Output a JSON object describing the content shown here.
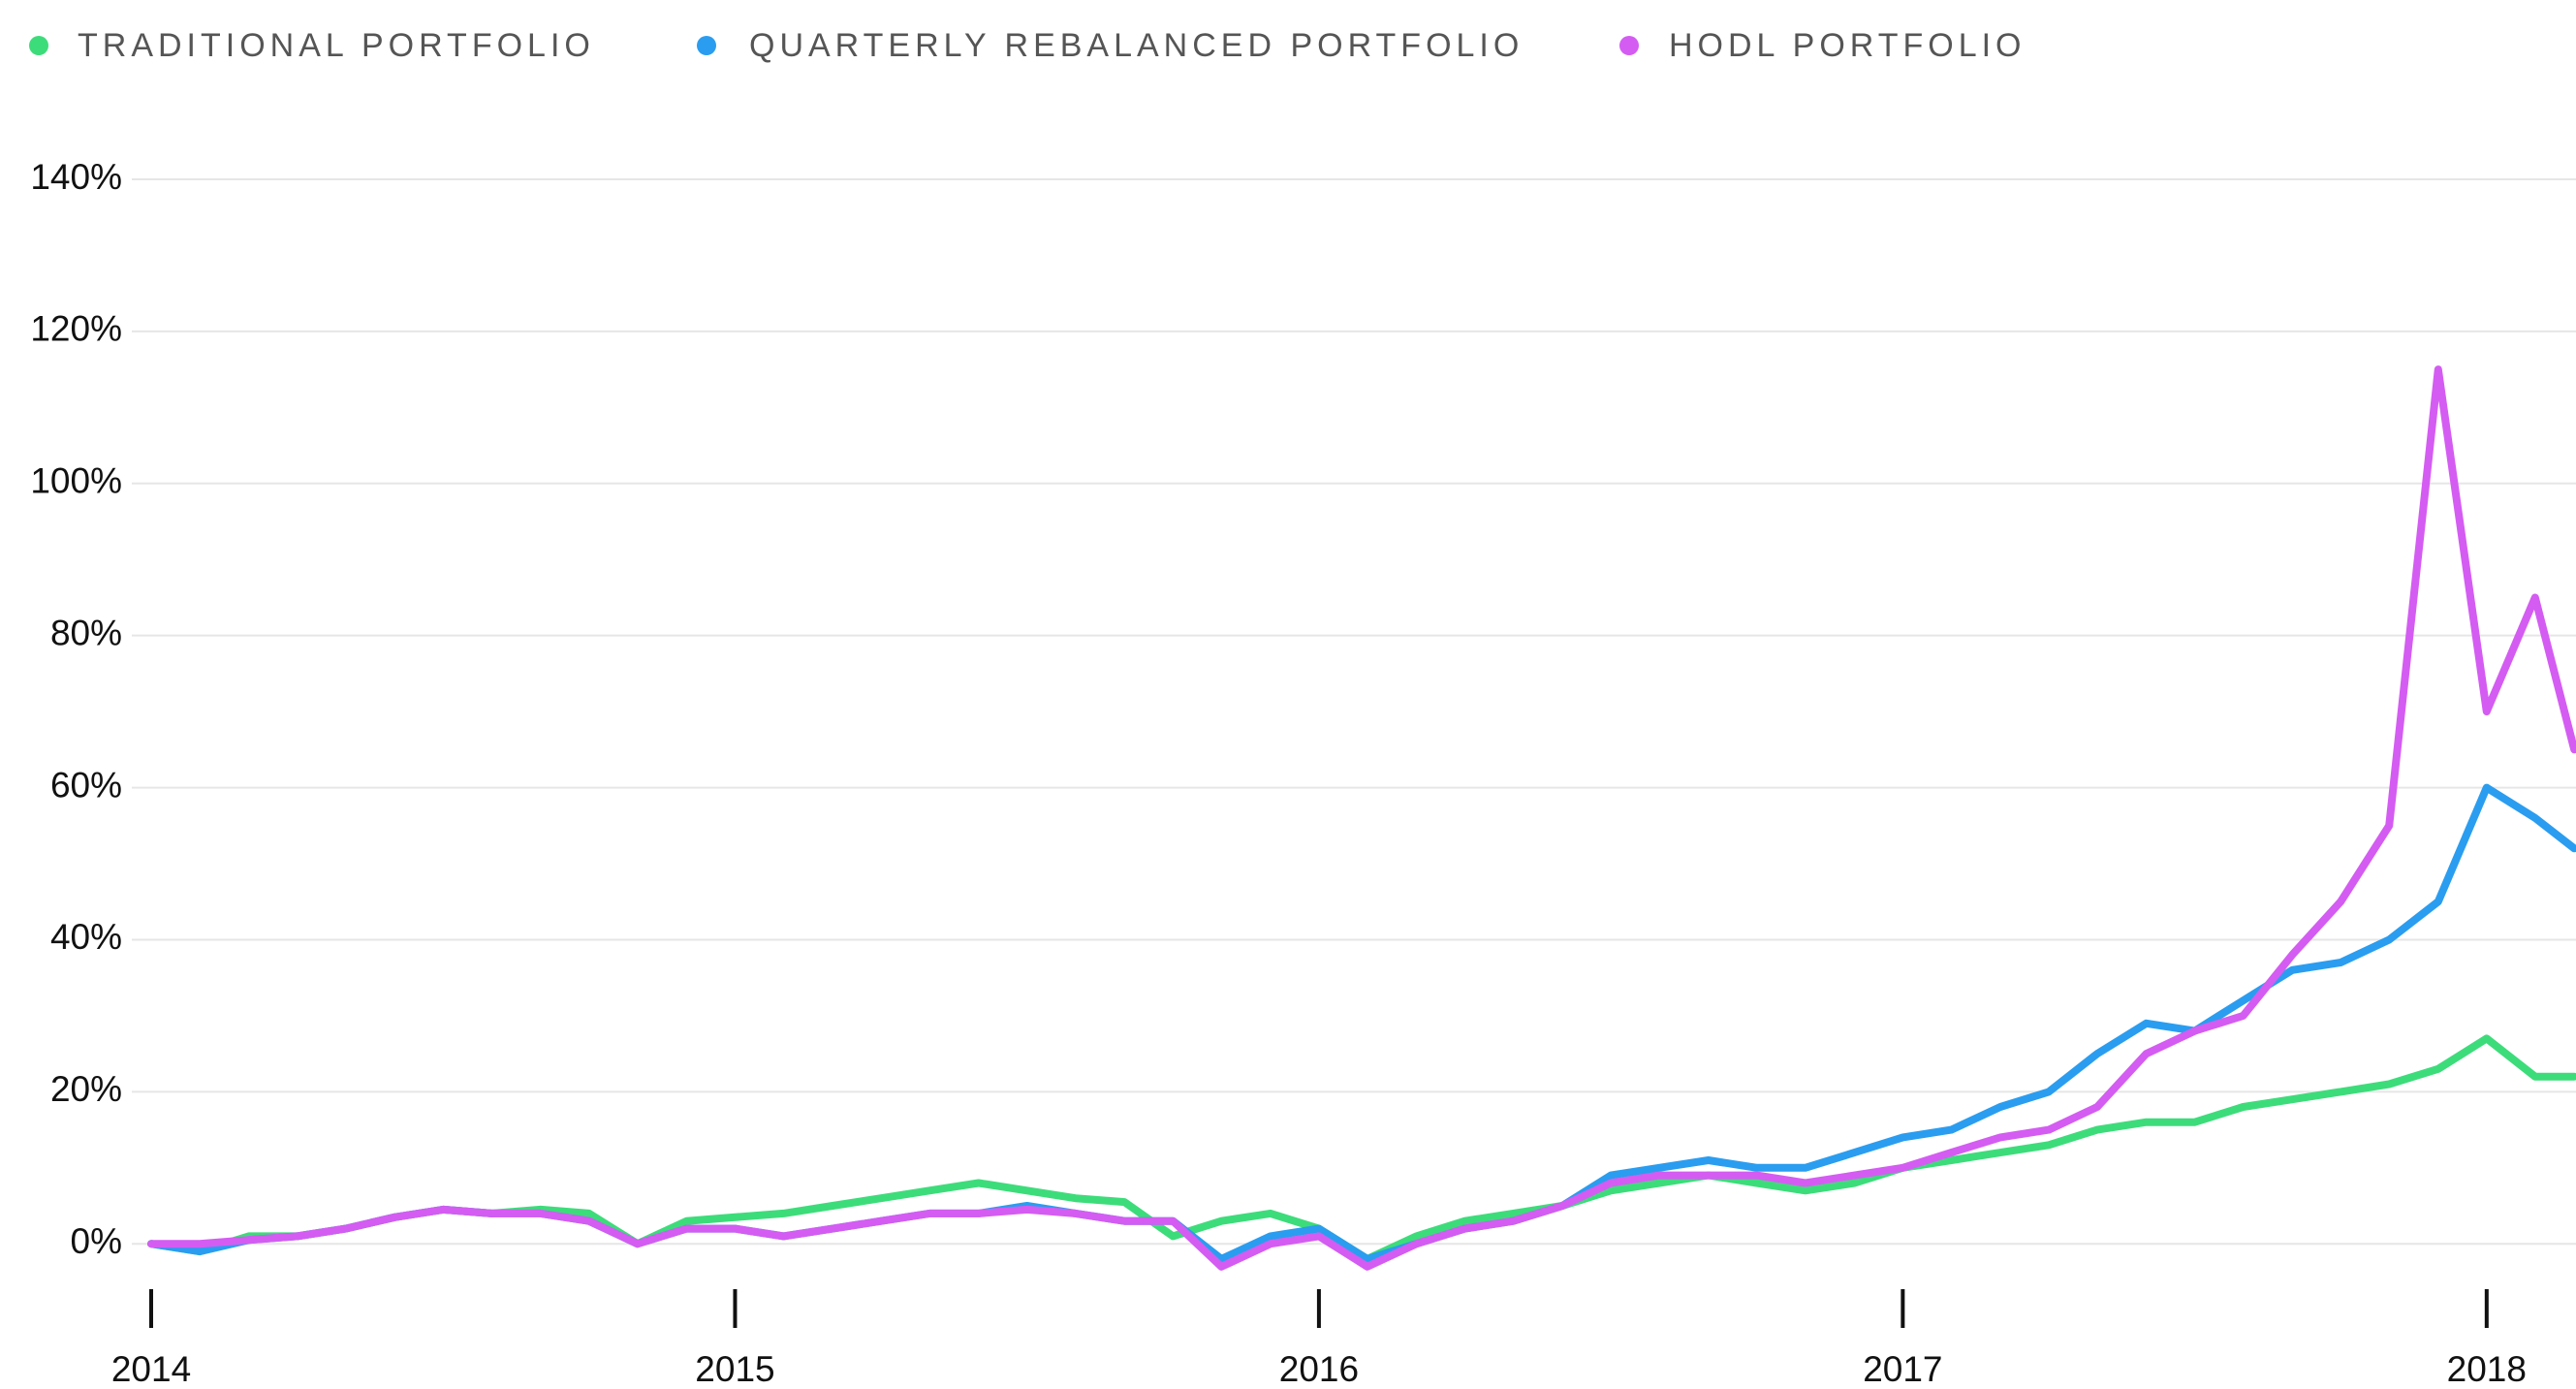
{
  "chart_data": {
    "type": "line",
    "x": [
      2014,
      2014.083,
      2014.167,
      2014.25,
      2014.333,
      2014.417,
      2014.5,
      2014.583,
      2014.667,
      2014.75,
      2014.833,
      2014.917,
      2015,
      2015.083,
      2015.167,
      2015.25,
      2015.333,
      2015.417,
      2015.5,
      2015.583,
      2015.667,
      2015.75,
      2015.833,
      2015.917,
      2016,
      2016.083,
      2016.167,
      2016.25,
      2016.333,
      2016.417,
      2016.5,
      2016.583,
      2016.667,
      2016.75,
      2016.833,
      2016.917,
      2017,
      2017.083,
      2017.167,
      2017.25,
      2017.333,
      2017.417,
      2017.5,
      2017.583,
      2017.667,
      2017.75,
      2017.833,
      2017.917,
      2018,
      2018.083,
      2018.15
    ],
    "series": [
      {
        "name": "TRADITIONAL PORTFOLIO",
        "color": "#3ddc7a",
        "values": [
          0,
          -1,
          1,
          1,
          2,
          3.5,
          4.5,
          4,
          4.5,
          4,
          0,
          3,
          3.5,
          4,
          5,
          6,
          7,
          8,
          7,
          6,
          5.5,
          1,
          3,
          4,
          2,
          -2,
          1,
          3,
          4,
          5,
          7,
          8,
          9,
          8,
          7,
          8,
          10,
          11,
          12,
          13,
          15,
          16,
          16,
          18,
          19,
          20,
          21,
          23,
          27,
          22,
          22
        ]
      },
      {
        "name": "QUARTERLY REBALANCED PORTFOLIO",
        "color": "#2a9df0",
        "values": [
          0,
          -1,
          0.5,
          1,
          2,
          3.5,
          4.5,
          4,
          4,
          3,
          0,
          2,
          2,
          1,
          2,
          3,
          4,
          4,
          5,
          4,
          3,
          3,
          -2,
          1,
          2,
          -2,
          0,
          2,
          3,
          5,
          9,
          10,
          11,
          10,
          10,
          12,
          14,
          15,
          18,
          20,
          25,
          29,
          28,
          32,
          36,
          37,
          40,
          45,
          60,
          56,
          52
        ]
      },
      {
        "name": "HODL PORTFOLIO",
        "color": "#d45cf2",
        "values": [
          0,
          0,
          0.5,
          1,
          2,
          3.5,
          4.5,
          4,
          4,
          3,
          0,
          2,
          2,
          1,
          2,
          3,
          4,
          4,
          4.5,
          4,
          3,
          3,
          -3,
          0,
          1,
          -3,
          0,
          2,
          3,
          5,
          8,
          9,
          9,
          9,
          8,
          9,
          10,
          12,
          14,
          15,
          18,
          25,
          28,
          30,
          38,
          45,
          55,
          115,
          70,
          85,
          65
        ]
      }
    ],
    "xlim": [
      2014,
      2018.153
    ],
    "xticks": [
      2014,
      2015,
      2016,
      2017,
      2018
    ],
    "ylim": [
      -8,
      140
    ],
    "yticks": [
      {
        "value": 0,
        "label": "0%"
      },
      {
        "value": 20,
        "label": "20%"
      },
      {
        "value": 40,
        "label": "40%"
      },
      {
        "value": 60,
        "label": "60%"
      },
      {
        "value": 80,
        "label": "80%"
      },
      {
        "value": 100,
        "label": "100%"
      },
      {
        "value": 120,
        "label": "120%"
      },
      {
        "value": 140,
        "label": "140%"
      }
    ],
    "grid": true
  }
}
